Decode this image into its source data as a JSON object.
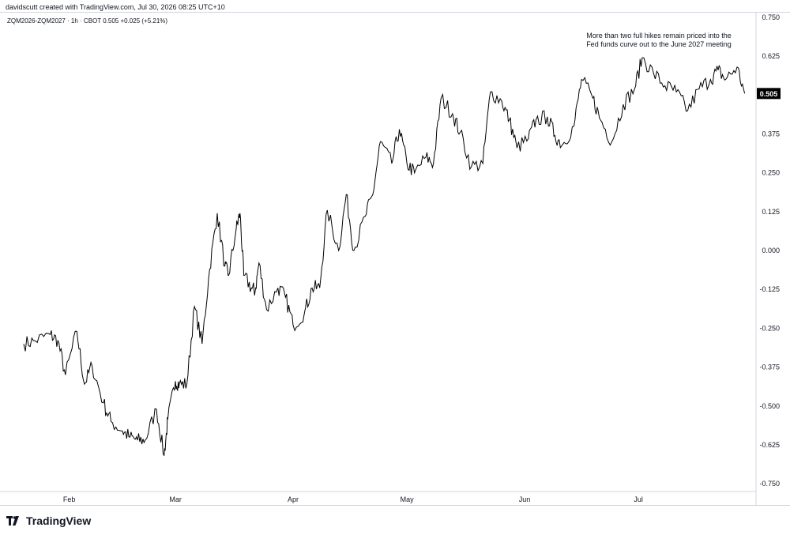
{
  "header": {
    "created_by": "davidscutt created with TradingView.com, Jul 30, 2026 08:25 UTC+10"
  },
  "symbol_line": "ZQM2026-ZQM2027 · 1h · CBOT  0.505  +0.025 (+5.21%)",
  "annotation": {
    "line1": "More than two full hikes remain priced into the",
    "line2": "Fed funds curve out to the June 2027 meeting"
  },
  "footer": {
    "brand": "TradingView",
    "logo_icon": "tradingview-logo-icon"
  },
  "colors": {
    "line": "#000000",
    "label_bg": "#000000",
    "label_text": "#ffffff",
    "axis_text": "#131722",
    "border": "#d1d4dc"
  },
  "chart_data": {
    "type": "line",
    "series": [
      {
        "x": [
          "2026-01-20",
          "2026-01-23",
          "2026-01-27",
          "2026-01-29",
          "2026-01-31",
          "2026-02-03",
          "2026-02-05",
          "2026-02-07",
          "2026-02-10",
          "2026-02-12",
          "2026-02-15",
          "2026-02-17",
          "2026-02-19",
          "2026-02-21",
          "2026-02-24",
          "2026-02-26",
          "2026-02-27",
          "2026-03-01",
          "2026-03-02",
          "2026-03-04",
          "2026-03-06",
          "2026-03-08",
          "2026-03-10",
          "2026-03-12",
          "2026-03-14",
          "2026-03-15",
          "2026-03-17",
          "2026-03-18",
          "2026-03-19",
          "2026-03-21",
          "2026-03-22",
          "2026-03-23",
          "2026-03-25",
          "2026-03-28",
          "2026-03-30",
          "2026-04-01",
          "2026-04-04",
          "2026-04-06",
          "2026-04-08",
          "2026-04-10",
          "2026-04-13",
          "2026-04-15",
          "2026-04-17",
          "2026-04-20",
          "2026-04-22",
          "2026-04-24",
          "2026-04-27",
          "2026-04-29",
          "2026-05-01",
          "2026-05-03",
          "2026-05-06",
          "2026-05-08",
          "2026-05-10",
          "2026-05-13",
          "2026-05-15",
          "2026-05-18",
          "2026-05-21",
          "2026-05-23",
          "2026-05-26",
          "2026-05-28",
          "2026-05-30",
          "2026-06-02",
          "2026-06-04",
          "2026-06-07",
          "2026-06-09",
          "2026-06-11",
          "2026-06-14",
          "2026-06-16",
          "2026-06-19",
          "2026-06-21",
          "2026-06-24",
          "2026-06-27",
          "2026-06-30",
          "2026-07-02",
          "2026-07-05",
          "2026-07-08",
          "2026-07-11",
          "2026-07-14",
          "2026-07-17",
          "2026-07-20",
          "2026-07-22",
          "2026-07-24",
          "2026-07-27",
          "2026-07-29"
        ],
        "y": [
          -0.3,
          -0.29,
          -0.27,
          -0.29,
          -0.4,
          -0.26,
          -0.43,
          -0.37,
          -0.49,
          -0.55,
          -0.58,
          -0.6,
          -0.61,
          -0.61,
          -0.51,
          -0.66,
          -0.54,
          -0.42,
          -0.43,
          -0.43,
          -0.18,
          -0.3,
          -0.06,
          0.12,
          -0.05,
          -0.08,
          0.07,
          0.12,
          -0.08,
          -0.12,
          -0.13,
          -0.04,
          -0.19,
          -0.12,
          -0.15,
          -0.24,
          -0.2,
          -0.12,
          -0.12,
          0.13,
          0.0,
          0.18,
          0.0,
          0.11,
          0.18,
          0.35,
          0.28,
          0.39,
          0.28,
          0.25,
          0.3,
          0.28,
          0.49,
          0.44,
          0.38,
          0.27,
          0.28,
          0.51,
          0.48,
          0.42,
          0.33,
          0.36,
          0.42,
          0.43,
          0.37,
          0.34,
          0.4,
          0.55,
          0.49,
          0.42,
          0.35,
          0.47,
          0.52,
          0.62,
          0.57,
          0.53,
          0.51,
          0.45,
          0.52,
          0.55,
          0.58,
          0.55,
          0.59,
          0.505
        ]
      }
    ],
    "last_value": "0.505",
    "title": "",
    "xlabel": "",
    "ylabel": "",
    "x_ticks": [
      "Feb",
      "Mar",
      "Apr",
      "May",
      "Jun",
      "Jul"
    ],
    "x_tick_dates": [
      "2026-02-01",
      "2026-03-01",
      "2026-04-01",
      "2026-05-01",
      "2026-06-01",
      "2026-07-01"
    ],
    "xlim": [
      "2026-01-15",
      "2026-08-01"
    ],
    "y_ticks": [
      "0.750",
      "0.625",
      "0.500",
      "0.375",
      "0.250",
      "0.125",
      "0.000",
      "-0.125",
      "-0.250",
      "-0.375",
      "-0.500",
      "-0.625",
      "-0.750"
    ],
    "ylim": [
      -0.775,
      0.765
    ],
    "grid": false,
    "legend": "none"
  }
}
